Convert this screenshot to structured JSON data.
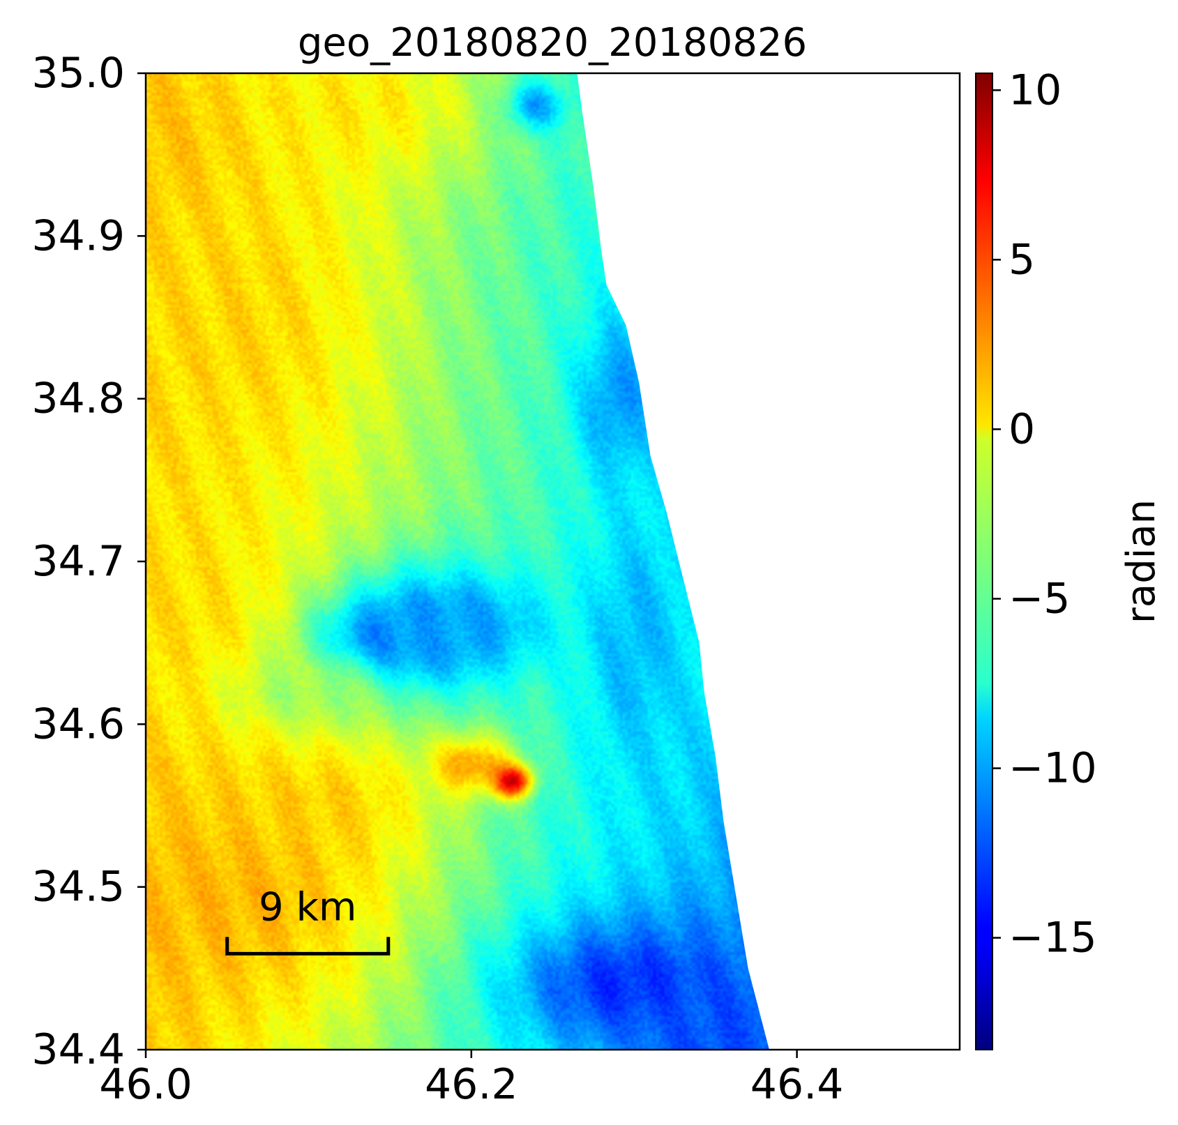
{
  "chart_data": {
    "type": "heatmap",
    "title": "geo_20180820_20180826",
    "xlabel": "",
    "ylabel": "",
    "xlim": [
      46.0,
      46.5
    ],
    "ylim": [
      34.4,
      35.0
    ],
    "x_ticks": [
      {
        "value": 46.0,
        "label": "46.0"
      },
      {
        "value": 46.2,
        "label": "46.2"
      },
      {
        "value": 46.4,
        "label": "46.4"
      }
    ],
    "y_ticks": [
      {
        "value": 35.0,
        "label": "35.0"
      },
      {
        "value": 34.9,
        "label": "34.9"
      },
      {
        "value": 34.8,
        "label": "34.8"
      },
      {
        "value": 34.7,
        "label": "34.7"
      },
      {
        "value": 34.6,
        "label": "34.6"
      },
      {
        "value": 34.5,
        "label": "34.5"
      },
      {
        "value": 34.4,
        "label": "34.4"
      }
    ],
    "colorbar": {
      "label": "radian",
      "colormap": "jet",
      "range": [
        -18.3,
        10.5
      ],
      "ticks": [
        {
          "value": 10,
          "label": "10"
        },
        {
          "value": 5,
          "label": "5"
        },
        {
          "value": 0,
          "label": "0"
        },
        {
          "value": -5,
          "label": "−5"
        },
        {
          "value": -10,
          "label": "−10"
        },
        {
          "value": -15,
          "label": "−15"
        }
      ]
    },
    "scale_bar": {
      "label": "9 km",
      "lon_start": 46.05,
      "lon_end": 46.149,
      "lat": 34.459
    },
    "no_data_boundary": [
      [
        46.265,
        35.0
      ],
      [
        46.268,
        34.977
      ],
      [
        46.275,
        34.93
      ],
      [
        46.28,
        34.89
      ],
      [
        46.283,
        34.87
      ],
      [
        46.295,
        34.845
      ],
      [
        46.303,
        34.81
      ],
      [
        46.31,
        34.765
      ],
      [
        46.32,
        34.73
      ],
      [
        46.33,
        34.69
      ],
      [
        46.34,
        34.65
      ],
      [
        46.343,
        34.62
      ],
      [
        46.35,
        34.58
      ],
      [
        46.355,
        34.54
      ],
      [
        46.36,
        34.51
      ],
      [
        46.37,
        34.45
      ],
      [
        46.383,
        34.4
      ]
    ],
    "fields": [
      {
        "lon": 46.06,
        "lat": 34.5,
        "sx": 0.1,
        "sy": 0.09,
        "value": 1.8
      },
      {
        "lon": 46.02,
        "lat": 34.96,
        "sx": 0.06,
        "sy": 0.05,
        "value": 1.8
      },
      {
        "lon": 46.06,
        "lat": 34.85,
        "sx": 0.09,
        "sy": 0.12,
        "value": 0.8
      },
      {
        "lon": 46.13,
        "lat": 34.98,
        "sx": 0.08,
        "sy": 0.05,
        "value": 0.2
      },
      {
        "lon": 46.02,
        "lat": 34.66,
        "sx": 0.06,
        "sy": 0.08,
        "value": 0.6
      },
      {
        "lon": 46.11,
        "lat": 34.55,
        "sx": 0.06,
        "sy": 0.04,
        "value": 1.0
      },
      {
        "lon": 46.15,
        "lat": 34.65,
        "sx": 0.04,
        "sy": 0.025,
        "value": -14.0
      },
      {
        "lon": 46.18,
        "lat": 34.66,
        "sx": 0.06,
        "sy": 0.04,
        "value": -10.5
      },
      {
        "lon": 46.2,
        "lat": 34.66,
        "sx": 0.035,
        "sy": 0.02,
        "value": -10.0
      },
      {
        "lon": 46.2,
        "lat": 34.575,
        "sx": 0.025,
        "sy": 0.018,
        "value": 2.5
      },
      {
        "lon": 46.225,
        "lat": 34.565,
        "sx": 0.012,
        "sy": 0.01,
        "value": 8.0
      },
      {
        "lon": 46.1,
        "lat": 34.62,
        "sx": 0.05,
        "sy": 0.025,
        "value": -3.0
      },
      {
        "lon": 46.295,
        "lat": 34.44,
        "sx": 0.07,
        "sy": 0.04,
        "value": -13.5
      },
      {
        "lon": 46.35,
        "lat": 34.41,
        "sx": 0.045,
        "sy": 0.03,
        "value": -12.5
      },
      {
        "lon": 46.29,
        "lat": 34.8,
        "sx": 0.025,
        "sy": 0.05,
        "value": -10.5
      },
      {
        "lon": 46.24,
        "lat": 34.98,
        "sx": 0.018,
        "sy": 0.015,
        "value": -10.0
      },
      {
        "lon": 46.3,
        "lat": 34.65,
        "sx": 0.03,
        "sy": 0.08,
        "value": -9.5
      }
    ]
  }
}
